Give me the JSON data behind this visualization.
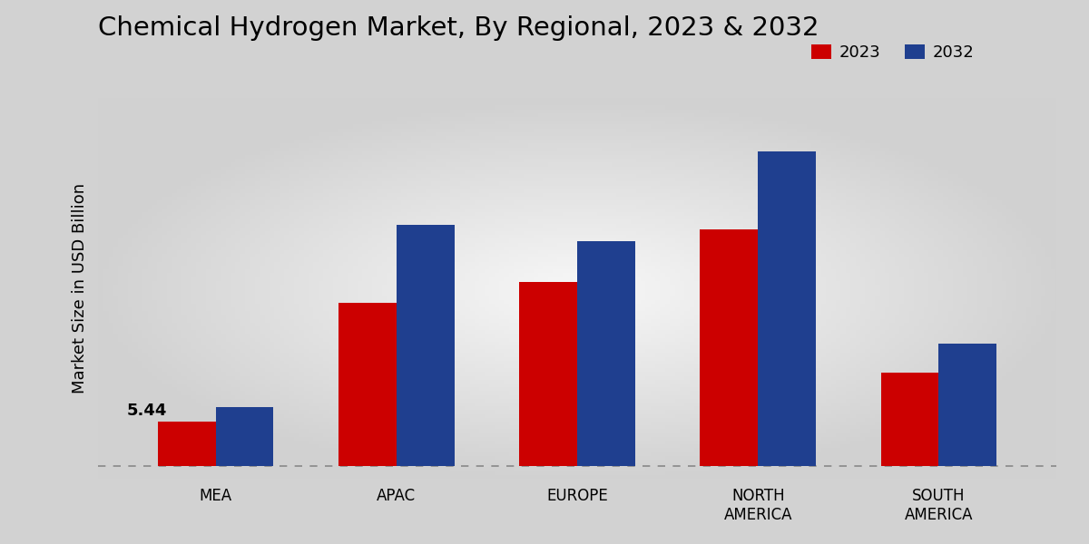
{
  "title": "Chemical Hydrogen Market, By Regional, 2023 & 2032",
  "ylabel": "Market Size in USD Billion",
  "categories": [
    "MEA",
    "APAC",
    "EUROPE",
    "NORTH\nAMERICA",
    "SOUTH\nAMERICA"
  ],
  "values_2023": [
    5.44,
    20.0,
    22.5,
    29.0,
    11.5
  ],
  "values_2032": [
    7.2,
    29.5,
    27.5,
    38.5,
    15.0
  ],
  "color_2023": "#cc0000",
  "color_2032": "#1f3f8f",
  "annotation_text": "5.44",
  "legend_labels": [
    "2023",
    "2032"
  ],
  "bar_width": 0.32,
  "bg_color_outer": "#d4d4d4",
  "bg_color_inner": "#f0f0f0",
  "dashed_line_y": 0,
  "ylim": [
    -1.5,
    45
  ],
  "title_fontsize": 21,
  "label_fontsize": 13,
  "tick_fontsize": 12,
  "legend_fontsize": 13
}
